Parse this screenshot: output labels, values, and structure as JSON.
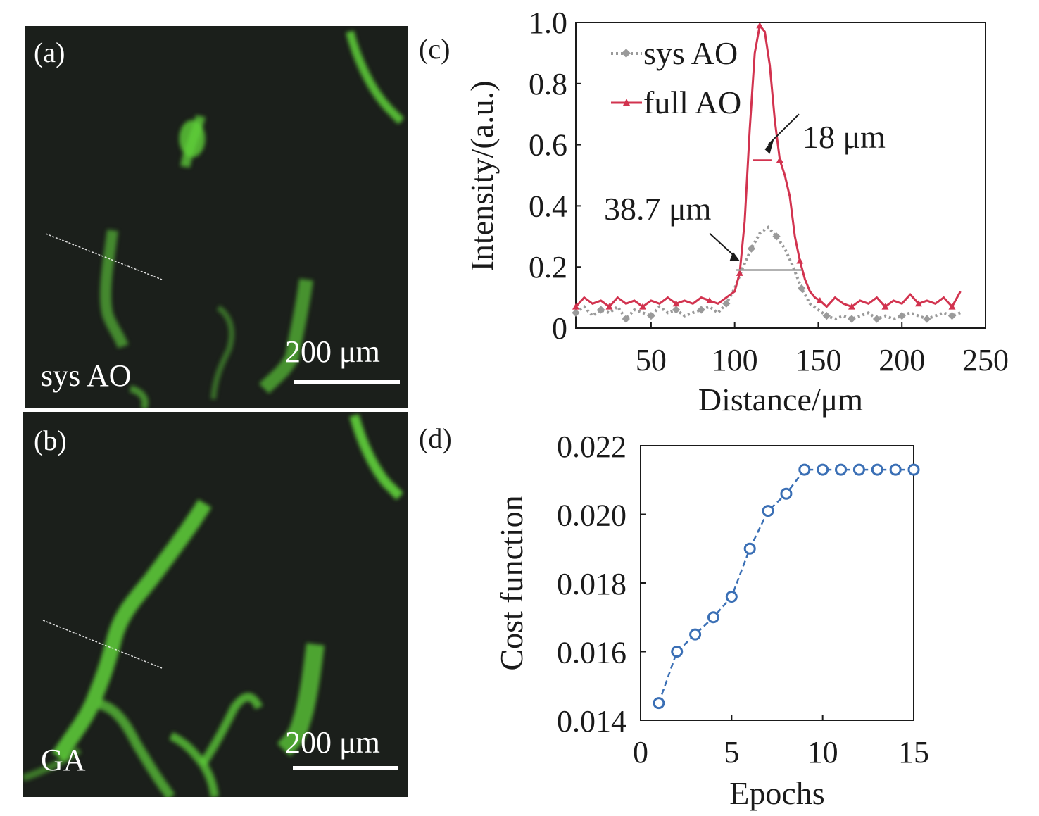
{
  "panels": {
    "a": {
      "label": "(a)",
      "caption": "sys AO",
      "scalebar": "200 μm"
    },
    "b": {
      "label": "(b)",
      "caption": "GA",
      "scalebar": "200 μm"
    }
  },
  "colors": {
    "image_bg": "#1b1f1b",
    "fluor": "#5fd13a",
    "sys": "#9a9a9a",
    "full": "#d2334f",
    "cost": "#3a6fb5",
    "axis": "#1a1a1a"
  },
  "chart_data": [
    {
      "type": "line",
      "panel_label": "(c)",
      "xlabel": "Distance/μm",
      "ylabel": "Intensity/(a.u.)",
      "xlim": [
        5,
        250
      ],
      "ylim": [
        0,
        1.0
      ],
      "xticks": [
        50,
        100,
        150,
        200,
        250
      ],
      "yticks": [
        0,
        0.2,
        0.4,
        0.6,
        0.8,
        1.0
      ],
      "ytick_labels": [
        "0",
        "0.2",
        "0.4",
        "0.6",
        "0.8",
        "1.0"
      ],
      "legend_position": "top-left",
      "annotations": [
        "18 μm",
        "38.7 μm"
      ],
      "series": [
        {
          "name": "sys AO",
          "style": "dotted-diamond",
          "x": [
            5,
            10,
            15,
            20,
            25,
            30,
            35,
            40,
            45,
            50,
            55,
            60,
            65,
            70,
            75,
            80,
            85,
            90,
            95,
            100,
            105,
            110,
            115,
            120,
            125,
            130,
            135,
            140,
            145,
            150,
            155,
            160,
            165,
            170,
            175,
            180,
            185,
            190,
            195,
            200,
            205,
            210,
            215,
            220,
            225,
            230,
            235
          ],
          "values": [
            0.05,
            0.07,
            0.04,
            0.06,
            0.05,
            0.07,
            0.03,
            0.06,
            0.05,
            0.04,
            0.07,
            0.05,
            0.06,
            0.04,
            0.05,
            0.06,
            0.07,
            0.05,
            0.08,
            0.13,
            0.2,
            0.26,
            0.31,
            0.33,
            0.3,
            0.26,
            0.2,
            0.13,
            0.08,
            0.06,
            0.04,
            0.03,
            0.04,
            0.03,
            0.04,
            0.05,
            0.03,
            0.04,
            0.03,
            0.04,
            0.05,
            0.04,
            0.03,
            0.04,
            0.05,
            0.04,
            0.05
          ]
        },
        {
          "name": "full AO",
          "style": "solid-triangle",
          "x": [
            5,
            10,
            15,
            20,
            25,
            30,
            35,
            40,
            45,
            50,
            55,
            60,
            65,
            70,
            75,
            80,
            85,
            90,
            95,
            100,
            103,
            106,
            109,
            112,
            115,
            118,
            121,
            124,
            127,
            130,
            133,
            136,
            139,
            142,
            145,
            148,
            151,
            155,
            160,
            165,
            170,
            175,
            180,
            185,
            190,
            195,
            200,
            205,
            210,
            215,
            220,
            225,
            230,
            235
          ],
          "values": [
            0.07,
            0.1,
            0.08,
            0.09,
            0.07,
            0.1,
            0.08,
            0.09,
            0.07,
            0.09,
            0.08,
            0.1,
            0.08,
            0.09,
            0.08,
            0.1,
            0.09,
            0.08,
            0.1,
            0.12,
            0.18,
            0.35,
            0.65,
            0.9,
            0.99,
            0.97,
            0.86,
            0.68,
            0.55,
            0.5,
            0.43,
            0.3,
            0.22,
            0.16,
            0.12,
            0.1,
            0.09,
            0.07,
            0.1,
            0.08,
            0.07,
            0.09,
            0.08,
            0.1,
            0.07,
            0.09,
            0.08,
            0.11,
            0.08,
            0.09,
            0.08,
            0.1,
            0.07,
            0.12
          ]
        }
      ]
    },
    {
      "type": "line",
      "panel_label": "(d)",
      "xlabel": "Epochs",
      "ylabel": "Cost function",
      "xlim": [
        0,
        15
      ],
      "ylim": [
        0.014,
        0.022
      ],
      "xticks": [
        0,
        5,
        10,
        15
      ],
      "yticks": [
        0.014,
        0.016,
        0.018,
        0.02,
        0.022
      ],
      "ytick_labels": [
        "0.014",
        "0.016",
        "0.018",
        "0.020",
        "0.022"
      ],
      "series": [
        {
          "name": "",
          "style": "dashed-circle",
          "x": [
            1,
            2,
            3,
            4,
            5,
            6,
            7,
            8,
            9,
            10,
            11,
            12,
            13,
            14,
            15
          ],
          "values": [
            0.0145,
            0.016,
            0.0165,
            0.017,
            0.0176,
            0.019,
            0.0201,
            0.0206,
            0.0213,
            0.0213,
            0.0213,
            0.0213,
            0.0213,
            0.0213,
            0.0213
          ]
        }
      ]
    }
  ]
}
